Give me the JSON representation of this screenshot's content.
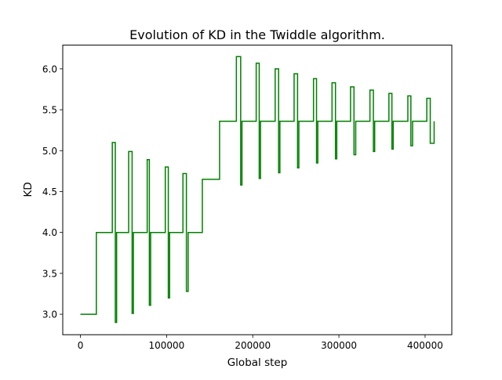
{
  "chart_data": {
    "type": "line",
    "title": "Evolution of KD in the Twiddle algorithm.",
    "xlabel": "Global step",
    "ylabel": "KD",
    "xlim": [
      -20500,
      431000
    ],
    "ylim": [
      2.75,
      6.29
    ],
    "xticks": [
      0,
      100000,
      200000,
      300000,
      400000
    ],
    "xtick_labels": [
      "0",
      "100000",
      "200000",
      "300000",
      "400000"
    ],
    "yticks": [
      3.0,
      3.5,
      4.0,
      4.5,
      5.0,
      5.5,
      6.0
    ],
    "ytick_labels": [
      "3.0",
      "3.5",
      "4.0",
      "4.5",
      "5.0",
      "5.5",
      "6.0"
    ],
    "grid": false,
    "legend": "none",
    "line_style": "steps-post",
    "series": [
      {
        "color": "#008000",
        "x": [
          0,
          18500,
          37000,
          40500,
          42000,
          56000,
          60000,
          61500,
          77500,
          80000,
          81500,
          98500,
          102000,
          103500,
          119000,
          123000,
          125000,
          141500,
          161500,
          181000,
          186000,
          187500,
          204000,
          207500,
          209000,
          226000,
          230000,
          231500,
          248000,
          252000,
          253500,
          270500,
          274000,
          275500,
          292000,
          296000,
          297500,
          313500,
          317500,
          319500,
          336000,
          340000,
          341500,
          358000,
          361500,
          363000,
          380000,
          383500,
          385500,
          402000,
          406000,
          410500
        ],
        "y": [
          3.0,
          4.0,
          5.1,
          2.9,
          4.0,
          4.99,
          3.01,
          4.0,
          4.89,
          3.11,
          4.0,
          4.8,
          3.2,
          4.0,
          4.72,
          3.28,
          4.0,
          4.65,
          5.36,
          6.15,
          4.58,
          5.36,
          6.07,
          4.66,
          5.36,
          6.0,
          4.73,
          5.36,
          5.94,
          4.79,
          5.36,
          5.88,
          4.85,
          5.36,
          5.83,
          4.9,
          5.36,
          5.78,
          4.95,
          5.36,
          5.74,
          4.99,
          5.36,
          5.7,
          5.02,
          5.36,
          5.67,
          5.06,
          5.36,
          5.64,
          5.09,
          5.36
        ]
      }
    ]
  }
}
